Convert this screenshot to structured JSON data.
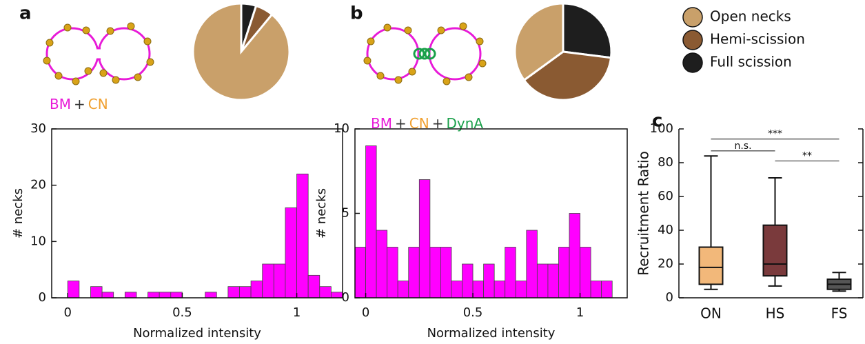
{
  "panels": {
    "a": "a",
    "b": "b",
    "c": "c"
  },
  "schematics": [
    {
      "parts": [
        "BM",
        "+",
        "CN"
      ],
      "colors": [
        "#e81ad8",
        "#333333",
        "#f0a030"
      ]
    },
    {
      "parts": [
        "BM",
        "+",
        "CN",
        "+",
        "DynA"
      ],
      "colors": [
        "#e81ad8",
        "#333333",
        "#f0a030",
        "#333333",
        "#1aa04a"
      ]
    }
  ],
  "chart_data": [
    {
      "type": "pie",
      "categories": [
        "Open necks",
        "Hemi-scission",
        "Full scission"
      ],
      "values": [
        89,
        6,
        5
      ],
      "colors": [
        "#c9a06a",
        "#8a5a32",
        "#1e1e1e"
      ],
      "legend": true
    },
    {
      "type": "histogram",
      "bins": [
        0,
        0.05,
        0.1,
        0.15,
        0.2,
        0.25,
        0.3,
        0.35,
        0.4,
        0.45,
        0.5,
        0.55,
        0.6,
        0.65,
        0.7,
        0.75,
        0.8,
        0.85,
        0.9,
        0.95,
        1.0,
        1.05,
        1.1,
        1.15,
        1.2
      ],
      "values": [
        3,
        0,
        2,
        1,
        0,
        1,
        0,
        1,
        1,
        1,
        0,
        0,
        1,
        0,
        2,
        2,
        3,
        6,
        6,
        16,
        22,
        4,
        2,
        1
      ],
      "color": "#ff00ff",
      "xlabel": "Normalized intensity",
      "ylabel": "# necks",
      "xlim": [
        -0.07,
        1.2
      ],
      "ylim": [
        0,
        30
      ],
      "xticks": [
        0,
        0.5,
        1
      ],
      "yticks": [
        0,
        10,
        20,
        30
      ]
    },
    {
      "type": "pie",
      "categories": [
        "Open necks",
        "Hemi-scission",
        "Full scission"
      ],
      "values": [
        35,
        38,
        27
      ],
      "colors": [
        "#c9a06a",
        "#8a5a32",
        "#1e1e1e"
      ],
      "legend": false
    },
    {
      "type": "histogram",
      "bins": [
        -0.05,
        0.0,
        0.05,
        0.1,
        0.15,
        0.2,
        0.25,
        0.3,
        0.35,
        0.4,
        0.45,
        0.5,
        0.55,
        0.6,
        0.65,
        0.7,
        0.75,
        0.8,
        0.85,
        0.9,
        0.95,
        1.0,
        1.05,
        1.1,
        1.15
      ],
      "values": [
        3,
        9,
        4,
        3,
        1,
        3,
        7,
        3,
        3,
        1,
        2,
        1,
        2,
        1,
        3,
        1,
        4,
        2,
        2,
        3,
        5,
        3,
        1,
        1
      ],
      "color": "#ff00ff",
      "xlabel": "Normalized intensity",
      "ylabel": "# necks",
      "xlim": [
        -0.05,
        1.22
      ],
      "ylim": [
        0,
        10
      ],
      "xticks": [
        0,
        0.5,
        1
      ],
      "yticks": [
        0,
        5,
        10
      ]
    },
    {
      "type": "box",
      "categories": [
        "ON",
        "HS",
        "FS"
      ],
      "colors": [
        "#f2b87a",
        "#7a3a3c",
        "#555555"
      ],
      "stats": [
        {
          "min": 5,
          "q1": 8,
          "median": 18,
          "q3": 30,
          "max": 84
        },
        {
          "min": 7,
          "q1": 13,
          "median": 20,
          "q3": 43,
          "max": 71
        },
        {
          "min": 4,
          "q1": 5,
          "median": 8,
          "q3": 11,
          "max": 15
        }
      ],
      "ylabel": "Recruitment Ratio",
      "ylim": [
        0,
        100
      ],
      "yticks": [
        0,
        20,
        40,
        60,
        80,
        100
      ],
      "annotations": [
        {
          "text": "***",
          "between": [
            "ON",
            "FS"
          ],
          "y": 94
        },
        {
          "text": "n.s.",
          "between": [
            "ON",
            "HS"
          ],
          "y": 87
        },
        {
          "text": "**",
          "between": [
            "HS",
            "FS"
          ],
          "y": 81
        }
      ]
    }
  ]
}
